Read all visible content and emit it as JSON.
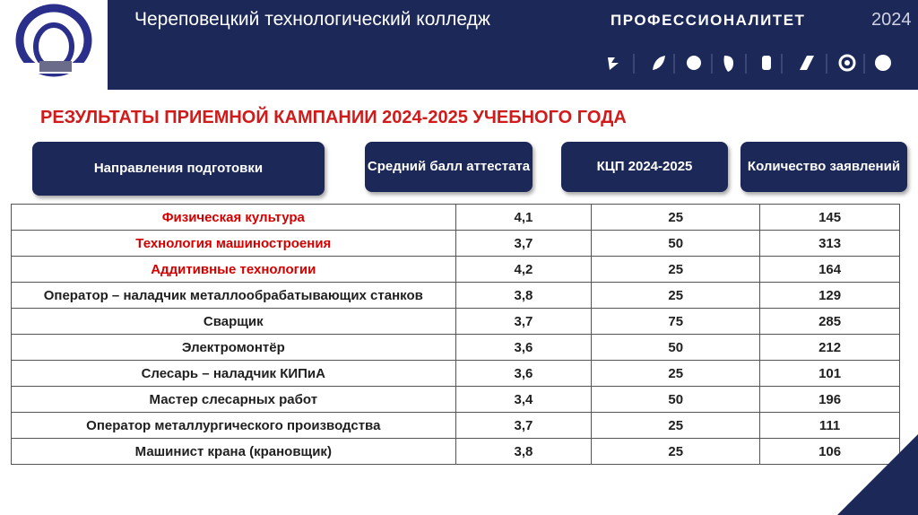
{
  "header": {
    "title": "Череповецкий технологический колледж",
    "brand": "ПРОФЕССИОНАЛИТЕТ",
    "year": "2024"
  },
  "heading": "РЕЗУЛЬТАТЫ ПРИЕМНОЙ КАМПАНИИ 2024-2025 УЧЕБНОГО ГОДА",
  "table": {
    "columns": [
      "Направления подготовки",
      "Средний балл аттестата",
      "КЦП 2024-2025",
      "Количество заявлений"
    ],
    "rows": [
      {
        "cells": [
          "Физическая культура",
          "4,1",
          25,
          145
        ],
        "color": "#d40000"
      },
      {
        "cells": [
          "Технология машиностроения",
          "3,7",
          50,
          313
        ],
        "color": "#d40000"
      },
      {
        "cells": [
          "Аддитивные технологии",
          "4,2",
          25,
          164
        ],
        "color": "#d40000"
      },
      {
        "cells": [
          "Оператор – наладчик металлообрабатывающих станков",
          "3,8",
          25,
          129
        ],
        "color": "#1f1f1f"
      },
      {
        "cells": [
          "Сварщик",
          "3,7",
          75,
          285
        ],
        "color": "#1f1f1f"
      },
      {
        "cells": [
          "Электромонтёр",
          "3,6",
          50,
          212
        ],
        "color": "#1f1f1f"
      },
      {
        "cells": [
          "Слесарь – наладчик  КИПиА",
          "3,6",
          25,
          101
        ],
        "color": "#1f1f1f"
      },
      {
        "cells": [
          "Мастер слесарных работ",
          "3,4",
          50,
          196
        ],
        "color": "#1f1f1f"
      },
      {
        "cells": [
          "Оператор металлургического производства",
          "3,7",
          25,
          111
        ],
        "color": "#1f1f1f"
      },
      {
        "cells": [
          "Машинист крана (крановщик)",
          "3,8",
          25,
          106
        ],
        "color": "#1f1f1f"
      }
    ]
  }
}
